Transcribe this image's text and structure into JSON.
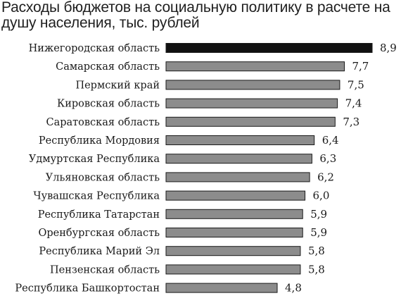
{
  "chart_data": {
    "type": "bar",
    "orientation": "horizontal",
    "title": "Расходы бюджетов на социальную политику в расчете на душу населения, тыс. рублей",
    "categories": [
      "Нижегородская область",
      "Самарская область",
      "Пермский край",
      "Кировская область",
      "Саратовская область",
      "Республика Мордовия",
      "Удмуртская Республика",
      "Ульяновская область",
      "Чувашская Республика",
      "Республика Татарстан",
      "Оренбургская область",
      "Республика Марий Эл",
      "Пензенская область",
      "Республика Башкортостан"
    ],
    "values": [
      8.9,
      7.7,
      7.5,
      7.4,
      7.3,
      6.4,
      6.3,
      6.2,
      6.0,
      5.9,
      5.9,
      5.8,
      5.8,
      4.8
    ],
    "value_labels": [
      "8,9",
      "7,7",
      "7,5",
      "7,4",
      "7,3",
      "6,4",
      "6,3",
      "6,2",
      "6,0",
      "5,9",
      "5,9",
      "5,8",
      "5,8",
      "4,8"
    ],
    "highlight_index": 0,
    "colors": {
      "highlight_fill": "#111111",
      "bar_fill": "#8c8c8c",
      "bar_stroke": "#1a1a1a"
    },
    "grid": false,
    "legend": "none"
  }
}
